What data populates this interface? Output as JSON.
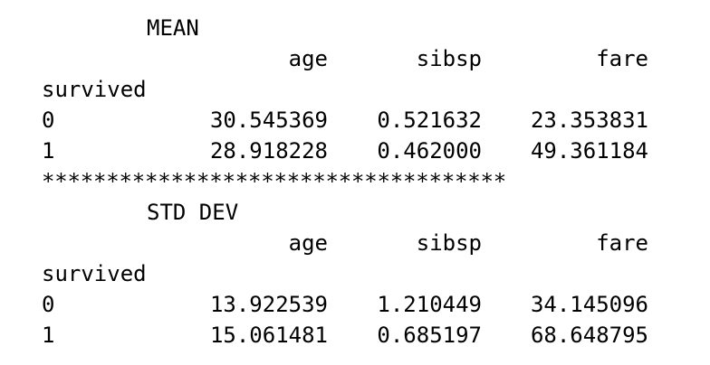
{
  "mean": {
    "title": "MEAN",
    "columns": [
      "age",
      "sibsp",
      "fare"
    ],
    "index_name": "survived",
    "rows": [
      {
        "index": "0",
        "values": [
          "30.545369",
          "0.521632",
          "23.353831"
        ]
      },
      {
        "index": "1",
        "values": [
          "28.918228",
          "0.462000",
          "49.361184"
        ]
      }
    ]
  },
  "separator": "************************************",
  "std": {
    "title": "STD DEV",
    "columns": [
      "age",
      "sibsp",
      "fare"
    ],
    "index_name": "survived",
    "rows": [
      {
        "index": "0",
        "values": [
          "13.922539",
          "1.210449",
          "34.145096"
        ]
      },
      {
        "index": "1",
        "values": [
          "15.061481",
          "0.685197",
          "68.648795"
        ]
      }
    ]
  }
}
